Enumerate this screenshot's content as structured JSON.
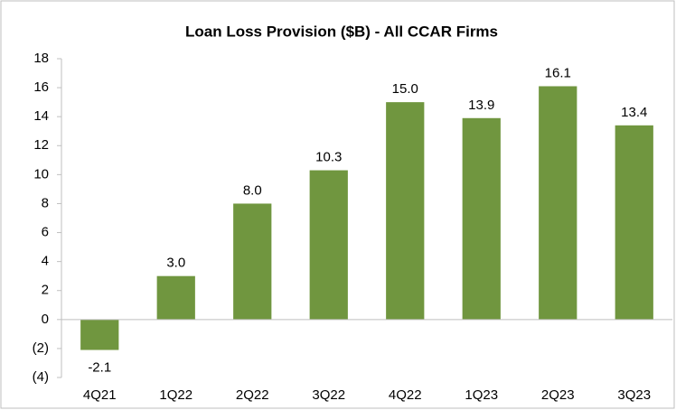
{
  "chart_data": {
    "type": "bar",
    "title": "Loan Loss Provision ($B) - All CCAR Firms",
    "categories": [
      "4Q21",
      "1Q22",
      "2Q22",
      "3Q22",
      "4Q22",
      "1Q23",
      "2Q23",
      "3Q23"
    ],
    "values": [
      -2.1,
      3.0,
      8.0,
      10.3,
      15.0,
      13.9,
      16.1,
      13.4
    ],
    "value_labels": [
      "-2.1",
      "3.0",
      "8.0",
      "10.3",
      "15.0",
      "13.9",
      "16.1",
      "13.4"
    ],
    "color": "#70963f",
    "ylim": [
      -4,
      18
    ],
    "yticks": [
      {
        "value": -4,
        "label": "(4)"
      },
      {
        "value": -2,
        "label": "(2)"
      },
      0,
      2,
      4,
      6,
      8,
      10,
      12,
      14,
      16,
      18
    ],
    "grid": false
  }
}
